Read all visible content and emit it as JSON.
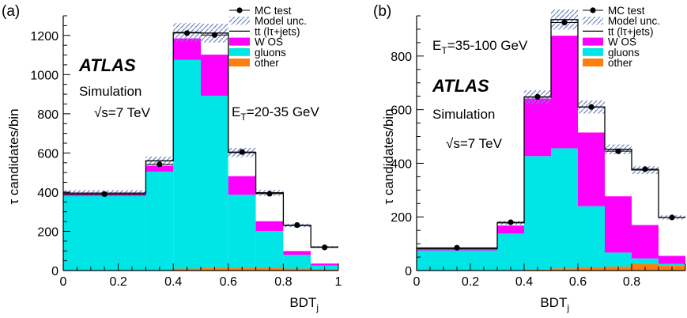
{
  "chart_data": [
    {
      "panel_label": "(a)",
      "type": "bar",
      "stacked": true,
      "xlabel": "BDT",
      "xlabel_sub": "j",
      "ylabel": "τ candidates/bin",
      "xlim": [
        0,
        1
      ],
      "ylim": [
        0,
        1300
      ],
      "x_ticks": [
        0,
        0.2,
        0.4,
        0.6,
        0.8,
        1
      ],
      "x_tick_labels": [
        "0",
        "0.2",
        "0.4",
        "0.6",
        "0.8",
        "1"
      ],
      "y_ticks": [
        0,
        200,
        400,
        600,
        800,
        1000,
        1200
      ],
      "bin_edges": [
        0,
        0.3,
        0.4,
        0.5,
        0.6,
        0.7,
        0.8,
        0.9,
        1.0
      ],
      "series": [
        {
          "name": "other",
          "color": "#ff7f0e",
          "values": [
            0,
            0,
            10,
            12,
            12,
            12,
            10,
            6
          ]
        },
        {
          "name": "gluons",
          "color": "#00e5e5",
          "values": [
            380,
            505,
            1065,
            880,
            375,
            190,
            70,
            20
          ]
        },
        {
          "name": "W OS",
          "color": "#ff00ff",
          "values": [
            10,
            30,
            110,
            210,
            95,
            50,
            20,
            10
          ]
        },
        {
          "name": "tt (lτ+jets)",
          "color": "#ffffff",
          "values": [
            5,
            25,
            30,
            110,
            120,
            145,
            130,
            84
          ]
        }
      ],
      "mc_test": {
        "name": "MC test",
        "x": [
          0.15,
          0.35,
          0.45,
          0.55,
          0.65,
          0.75,
          0.85,
          0.95
        ],
        "y": [
          390,
          542,
          1212,
          1202,
          605,
          392,
          232,
          118
        ]
      },
      "model_unc": {
        "name": "Model unc.",
        "fraction": 0.04
      },
      "texts": {
        "atlas": "ATLAS",
        "simulation": "Simulation",
        "energy": "√s=7 TeV",
        "et_base": "E",
        "et_sub": "T",
        "et_rest": "=20-35 GeV"
      }
    },
    {
      "panel_label": "(b)",
      "type": "bar",
      "stacked": true,
      "xlabel": "BDT",
      "xlabel_sub": "j",
      "ylabel": "τ candidates/bin",
      "xlim": [
        0,
        1
      ],
      "ylim": [
        0,
        950
      ],
      "x_ticks": [
        0,
        0.2,
        0.4,
        0.6,
        0.8,
        1
      ],
      "x_tick_labels": [
        "0",
        "0.2",
        "0.4",
        "0.6",
        "0.8",
        ""
      ],
      "y_ticks": [
        0,
        200,
        400,
        600,
        800
      ],
      "bin_edges": [
        0,
        0.3,
        0.4,
        0.5,
        0.6,
        0.7,
        0.8,
        0.9,
        1.0
      ],
      "series": [
        {
          "name": "other",
          "color": "#ff7f0e",
          "values": [
            0,
            0,
            5,
            8,
            12,
            15,
            25,
            20
          ]
        },
        {
          "name": "gluons",
          "color": "#00e5e5",
          "values": [
            75,
            138,
            422,
            448,
            228,
            52,
            20,
            5
          ]
        },
        {
          "name": "W OS",
          "color": "#ff00ff",
          "values": [
            5,
            30,
            215,
            420,
            275,
            210,
            125,
            30
          ]
        },
        {
          "name": "tt (lτ+jets)",
          "color": "#ffffff",
          "values": [
            2,
            10,
            5,
            60,
            95,
            175,
            205,
            143
          ]
        }
      ],
      "mc_test": {
        "name": "MC test",
        "x": [
          0.15,
          0.35,
          0.45,
          0.55,
          0.65,
          0.75,
          0.85,
          0.95
        ],
        "y": [
          85,
          180,
          648,
          925,
          610,
          445,
          378,
          198
        ]
      },
      "model_unc": {
        "name": "Model unc.",
        "fraction": 0.04
      },
      "texts": {
        "atlas": "ATLAS",
        "simulation": "Simulation",
        "energy": "√s=7 TeV",
        "et_base": "E",
        "et_sub": "T",
        "et_rest": "=35-100 GeV"
      }
    }
  ]
}
